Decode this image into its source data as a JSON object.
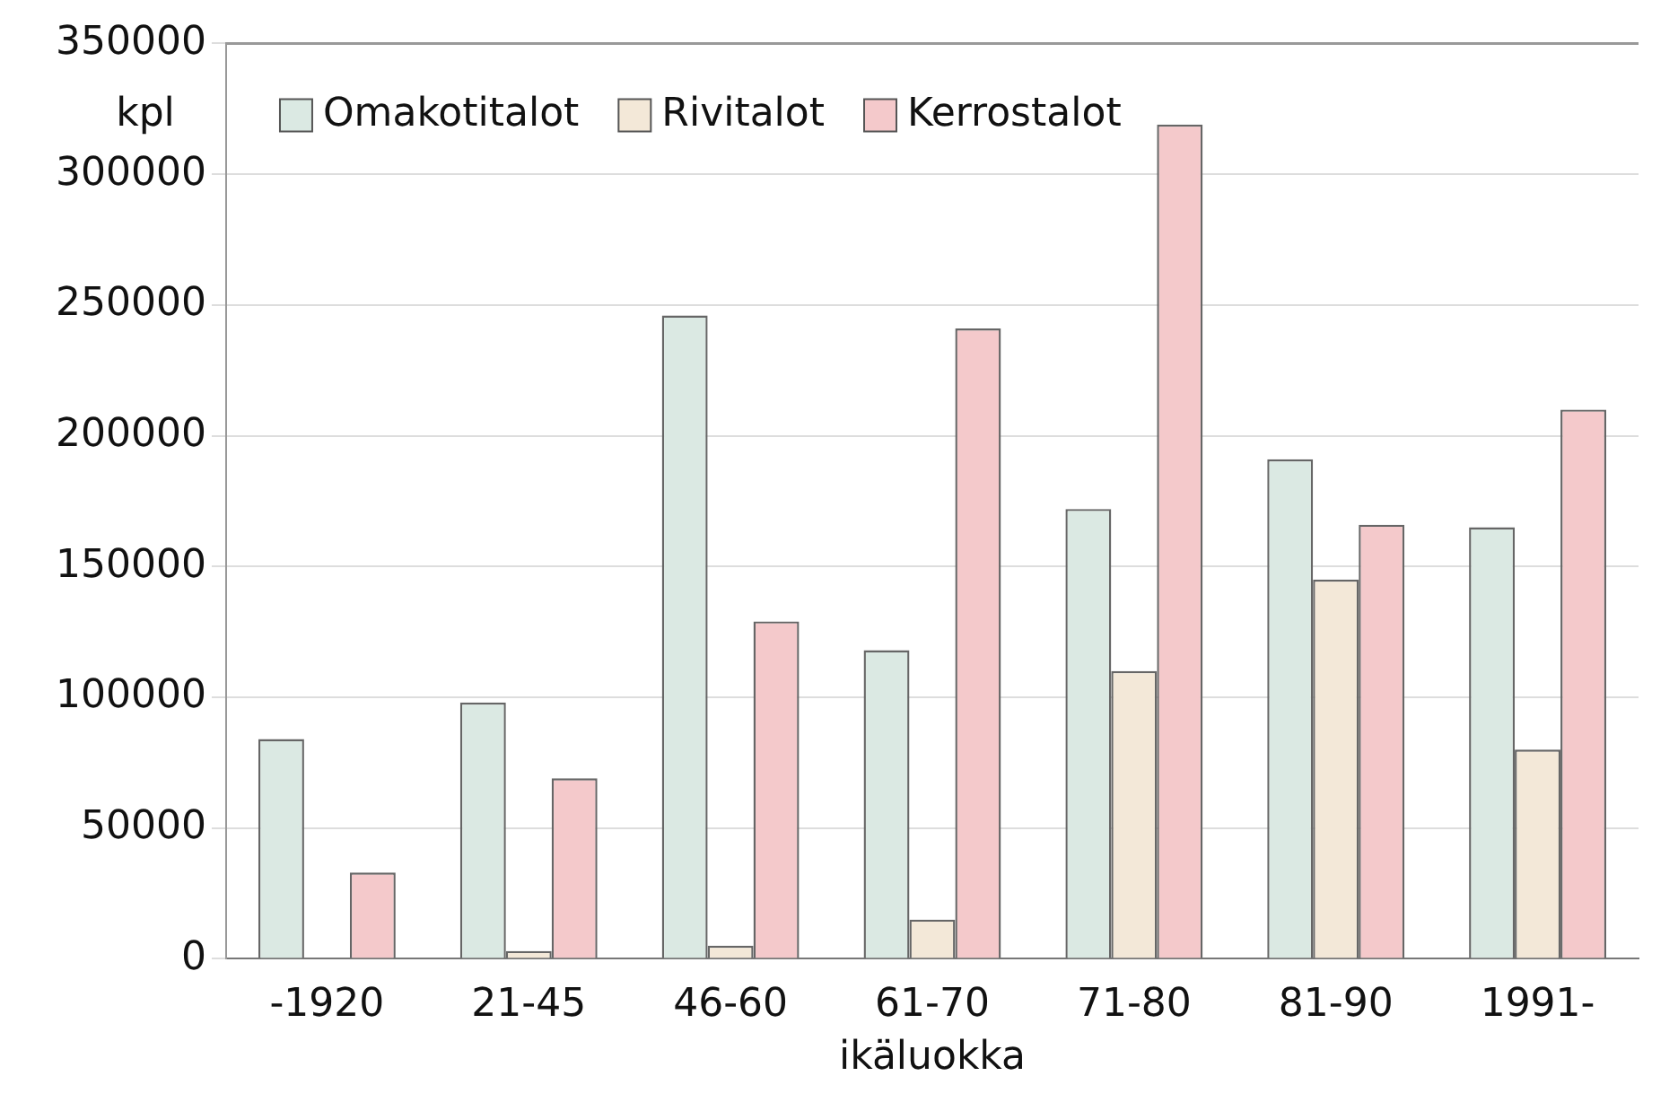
{
  "chart_data": {
    "type": "bar",
    "ylabel": "kpl",
    "xlabel": "ikäluokka",
    "categories": [
      "-1920",
      "21-45",
      "46-60",
      "61-70",
      "71-80",
      "81-90",
      "1991-"
    ],
    "series": [
      {
        "name": "Omakotitalot",
        "color": "#dbe9e3",
        "values": [
          84000,
          98000,
          246000,
          118000,
          172000,
          191000,
          165000
        ]
      },
      {
        "name": "Rivitalot",
        "color": "#f3e8d8",
        "values": [
          null,
          3000,
          5000,
          15000,
          110000,
          145000,
          80000
        ]
      },
      {
        "name": "Kerrostalot",
        "color": "#f4c9cb",
        "values": [
          33000,
          69000,
          129000,
          241000,
          319000,
          166000,
          210000
        ]
      }
    ],
    "ylim": [
      0,
      350000
    ],
    "yticks": [
      0,
      50000,
      100000,
      150000,
      200000,
      250000,
      300000,
      350000
    ],
    "grid": "y",
    "legend": "top left"
  }
}
